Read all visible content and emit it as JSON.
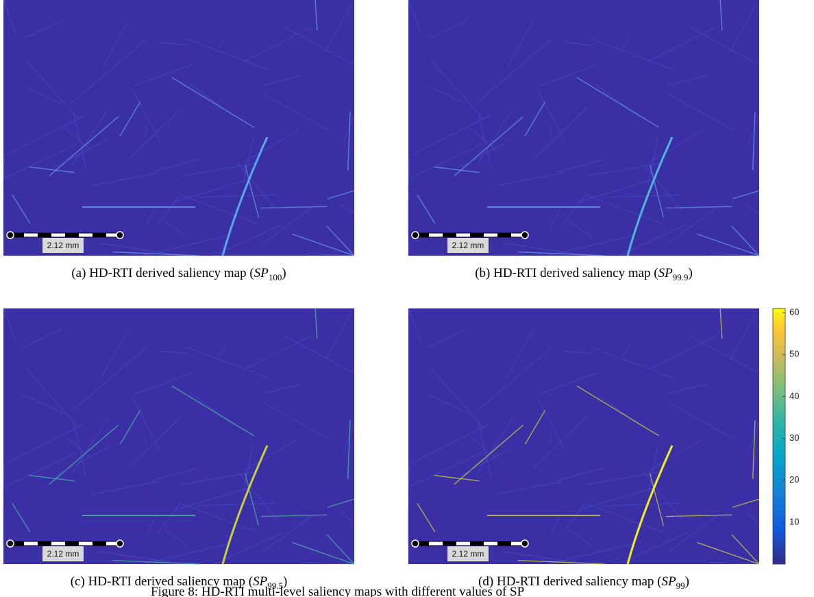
{
  "panels": [
    {
      "caption": {
        "prefix": "(a) HD-RTI derived saliency map (",
        "symbol": "SP",
        "subscript": "100",
        "suffix": ")"
      },
      "scale_label": "2.12 mm"
    },
    {
      "caption": {
        "prefix": "(b) HD-RTI derived saliency map (",
        "symbol": "SP",
        "subscript": "99.9",
        "suffix": ")"
      },
      "scale_label": "2.12 mm"
    },
    {
      "caption": {
        "prefix": "(c) HD-RTI derived saliency map (",
        "symbol": "SP",
        "subscript": "99.5",
        "suffix": ")"
      },
      "scale_label": "2.12 mm"
    },
    {
      "caption": {
        "prefix": "(d) HD-RTI derived saliency map (",
        "symbol": "SP",
        "subscript": "99",
        "suffix": ")"
      },
      "scale_label": "2.12 mm"
    }
  ],
  "colorbar": {
    "lim": [
      0,
      61
    ],
    "ticks": [
      10,
      20,
      30,
      40,
      50,
      60
    ]
  },
  "figure_caption": "Figure 8: HD-RTI multi-level saliency maps with different values of SP"
}
